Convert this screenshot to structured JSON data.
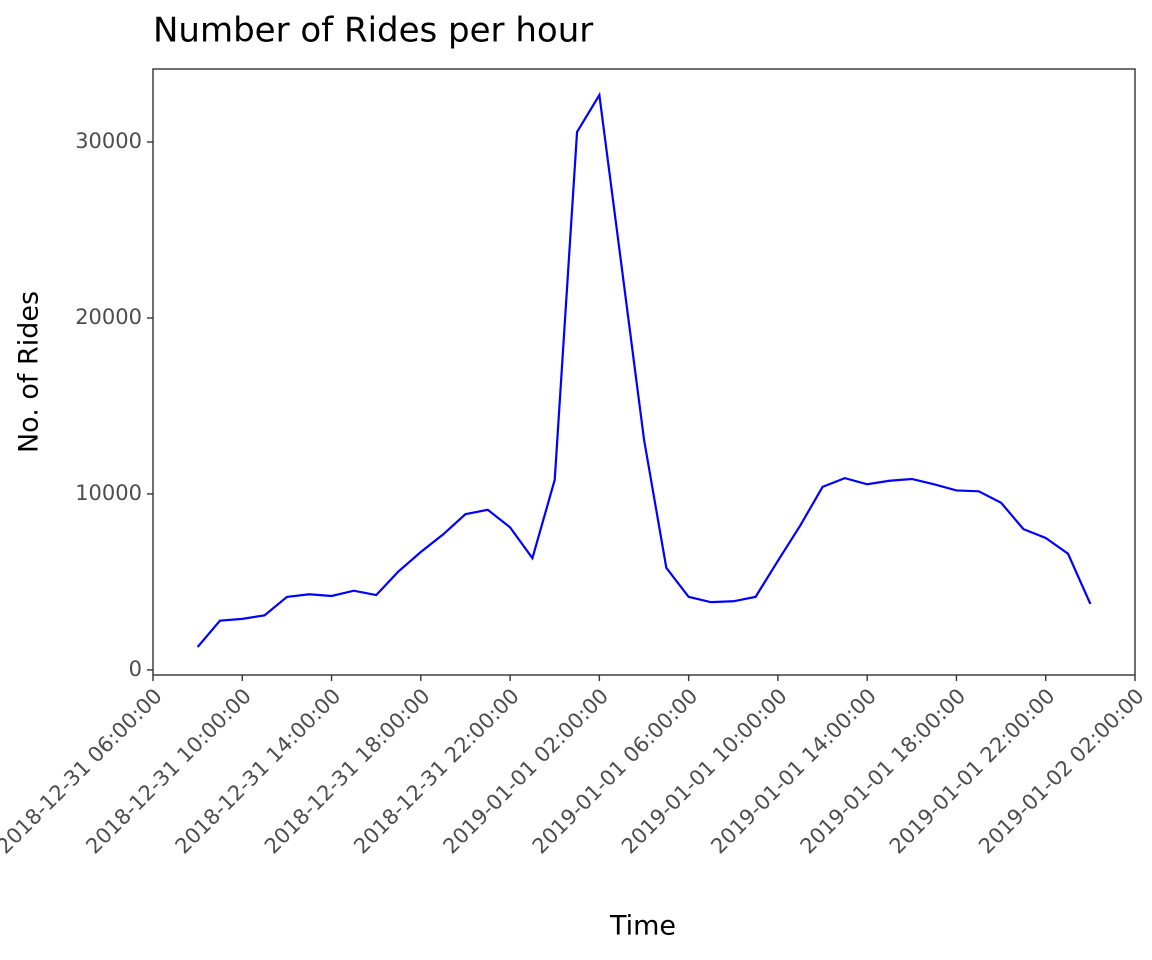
{
  "chart_data": {
    "type": "line",
    "title": "Number of Rides per hour",
    "x_label": "Time",
    "y_label": "No. of Rides",
    "x": [
      "2018-12-31 08:00:00",
      "2018-12-31 09:00:00",
      "2018-12-31 10:00:00",
      "2018-12-31 11:00:00",
      "2018-12-31 12:00:00",
      "2018-12-31 13:00:00",
      "2018-12-31 14:00:00",
      "2018-12-31 15:00:00",
      "2018-12-31 16:00:00",
      "2018-12-31 17:00:00",
      "2018-12-31 18:00:00",
      "2018-12-31 19:00:00",
      "2018-12-31 20:00:00",
      "2018-12-31 21:00:00",
      "2018-12-31 22:00:00",
      "2018-12-31 23:00:00",
      "2019-01-01 00:00:00",
      "2019-01-01 01:00:00",
      "2019-01-01 02:00:00",
      "2019-01-01 03:00:00",
      "2019-01-01 04:00:00",
      "2019-01-01 05:00:00",
      "2019-01-01 06:00:00",
      "2019-01-01 07:00:00",
      "2019-01-01 08:00:00",
      "2019-01-01 09:00:00",
      "2019-01-01 10:00:00",
      "2019-01-01 11:00:00",
      "2019-01-01 12:00:00",
      "2019-01-01 13:00:00",
      "2019-01-01 14:00:00",
      "2019-01-01 15:00:00",
      "2019-01-01 16:00:00",
      "2019-01-01 17:00:00",
      "2019-01-01 18:00:00",
      "2019-01-01 19:00:00",
      "2019-01-01 20:00:00",
      "2019-01-01 21:00:00",
      "2019-01-01 22:00:00",
      "2019-01-01 23:00:00",
      "2019-01-02 00:00:00"
    ],
    "series": [
      {
        "color": "#0000ff",
        "values": [
          1300,
          2800,
          2900,
          3100,
          4150,
          4300,
          4200,
          4500,
          4250,
          5600,
          6700,
          7700,
          8850,
          9100,
          8100,
          6350,
          10800,
          30570,
          32670,
          22900,
          13100,
          5800,
          4150,
          3850,
          3900,
          4150,
          6200,
          8200,
          10400,
          10900,
          10550,
          10750,
          10850,
          10550,
          10200,
          10150,
          9500,
          8000,
          7500,
          6600,
          3750
        ]
      }
    ],
    "xlim": [
      "2018-12-31 06:00:00",
      "2019-01-02 02:00:00"
    ],
    "xticks": [
      "2018-12-31 06:00:00",
      "2018-12-31 10:00:00",
      "2018-12-31 14:00:00",
      "2018-12-31 18:00:00",
      "2018-12-31 22:00:00",
      "2019-01-01 02:00:00",
      "2019-01-01 06:00:00",
      "2019-01-01 10:00:00",
      "2019-01-01 14:00:00",
      "2019-01-01 18:00:00",
      "2019-01-01 22:00:00",
      "2019-01-02 02:00:00"
    ],
    "ylim": [
      -290,
      34150
    ],
    "yticks": [
      0,
      10000,
      20000,
      30000
    ],
    "grid": false
  }
}
